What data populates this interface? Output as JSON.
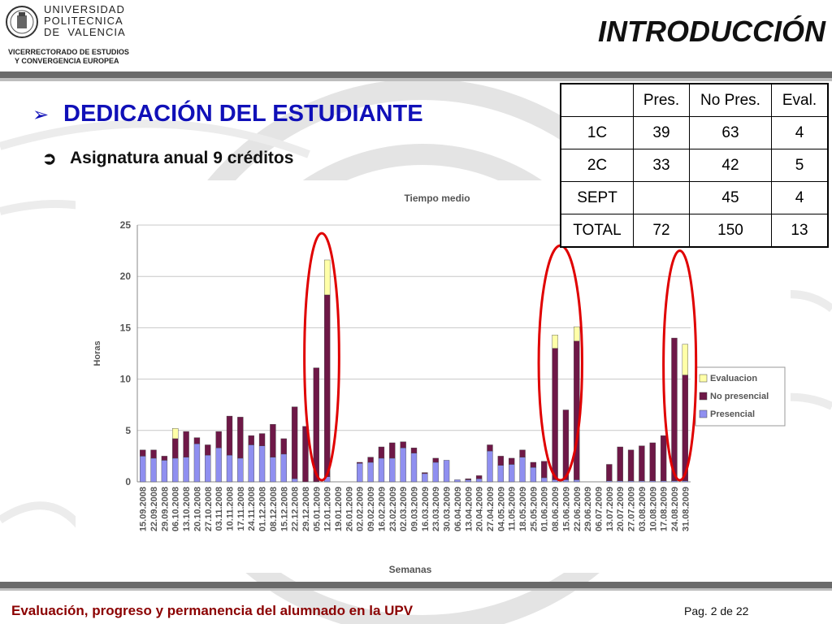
{
  "header": {
    "university_lines": [
      "UNIVERSIDAD",
      "POLITECNICA",
      "DE  VALENCIA"
    ],
    "vicerrectorado_lines": [
      "VICERRECTORADO DE ESTUDIOS",
      "Y CONVERGENCIA EUROPEA"
    ],
    "slide_title": "INTRODUCCIÓN"
  },
  "main": {
    "heading_bullet": "➢",
    "heading": "DEDICACIÓN DEL ESTUDIANTE",
    "sub_bullet": "➲",
    "subheading": "Asignatura anual 9 créditos"
  },
  "table": {
    "headers": [
      "",
      "Pres.",
      "No Pres.",
      "Eval."
    ],
    "rows": [
      [
        "1C",
        "39",
        "63",
        "4"
      ],
      [
        "2C",
        "33",
        "42",
        "5"
      ],
      [
        "SEPT",
        "",
        "45",
        "4"
      ],
      [
        "TOTAL",
        "72",
        "150",
        "13"
      ]
    ]
  },
  "footer": {
    "left_text": "Evaluación, progreso y permanencia del alumnado en la UPV",
    "page_text": "Pag. 2 de 22"
  },
  "colors": {
    "presencial": "#8f8ff0",
    "no_presencial": "#6e1847",
    "evaluacion": "#ffffa8",
    "heading": "#1010b8",
    "footer": "#8b0000",
    "highlight_ellipse": "#e00000"
  },
  "chart_data": {
    "type": "bar",
    "stacked": true,
    "title": "Tiempo medio",
    "xlabel": "Semanas",
    "ylabel": "Horas",
    "ylim": [
      0,
      25
    ],
    "yticks": [
      0,
      5,
      10,
      15,
      20,
      25
    ],
    "grid": "horizontal",
    "legend_position": "right",
    "categories": [
      "15.09.2008",
      "22.09.2008",
      "29.09.2008",
      "06.10.2008",
      "13.10.2008",
      "20.10.2008",
      "27.10.2008",
      "03.11.2008",
      "10.11.2008",
      "17.11.2008",
      "24.11.2008",
      "01.12.2008",
      "08.12.2008",
      "15.12.2008",
      "22.12.2008",
      "29.12.2008",
      "05.01.2009",
      "12.01.2009",
      "19.01.2009",
      "26.01.2009",
      "02.02.2009",
      "09.02.2009",
      "16.02.2009",
      "23.02.2009",
      "02.03.2009",
      "09.03.2009",
      "16.03.2009",
      "23.03.2009",
      "30.03.2009",
      "06.04.2009",
      "13.04.2009",
      "20.04.2009",
      "27.04.2009",
      "04.05.2009",
      "11.05.2009",
      "18.05.2009",
      "25.05.2009",
      "01.06.2009",
      "08.06.2009",
      "15.06.2009",
      "22.06.2009",
      "29.06.2009",
      "06.07.2009",
      "13.07.2009",
      "20.07.2009",
      "27.07.2009",
      "03.08.2009",
      "10.08.2009",
      "17.08.2009",
      "24.08.2009",
      "31.08.2009"
    ],
    "series": [
      {
        "name": "Presencial",
        "values": [
          2.5,
          2.3,
          2.1,
          2.3,
          2.4,
          3.7,
          2.6,
          3.3,
          2.6,
          2.3,
          3.6,
          3.5,
          2.4,
          2.7,
          0.3,
          0,
          0,
          0.5,
          0,
          0,
          1.8,
          1.9,
          2.3,
          2.3,
          3.3,
          2.8,
          0.8,
          1.9,
          2.1,
          0.2,
          0.2,
          0.3,
          3.0,
          1.6,
          1.7,
          2.4,
          1.4,
          0.4,
          0.2,
          0.2,
          0.2,
          0,
          0,
          0.1,
          0.1,
          0.1,
          0.1,
          0.1,
          0.1,
          0.1,
          0.1
        ]
      },
      {
        "name": "No presencial",
        "values": [
          0.6,
          0.8,
          0.4,
          1.9,
          2.5,
          0.6,
          1.0,
          1.6,
          3.8,
          4.0,
          0.9,
          1.2,
          3.2,
          1.5,
          7.0,
          5.4,
          11.1,
          17.7,
          0,
          0,
          0.1,
          0.5,
          1.1,
          1.5,
          0.6,
          0.5,
          0.1,
          0.4,
          0,
          0,
          0.1,
          0.3,
          0.6,
          0.9,
          0.6,
          0.7,
          0.5,
          1.6,
          12.8,
          6.8,
          13.5,
          0,
          0,
          1.6,
          3.3,
          3.0,
          3.4,
          3.7,
          4.4,
          13.9,
          10.3
        ]
      },
      {
        "name": "Evaluacion",
        "values": [
          0,
          0,
          0,
          1.0,
          0,
          0,
          0,
          0,
          0,
          0,
          0,
          0,
          0,
          0,
          0,
          0,
          0,
          3.4,
          0,
          0,
          0,
          0,
          0,
          0,
          0,
          0,
          0,
          0,
          0,
          0,
          0,
          0,
          0,
          0,
          0,
          0,
          0,
          0,
          1.3,
          0,
          1.4,
          0,
          0,
          0,
          0,
          0,
          0,
          0,
          0,
          0,
          3.0
        ]
      }
    ]
  }
}
